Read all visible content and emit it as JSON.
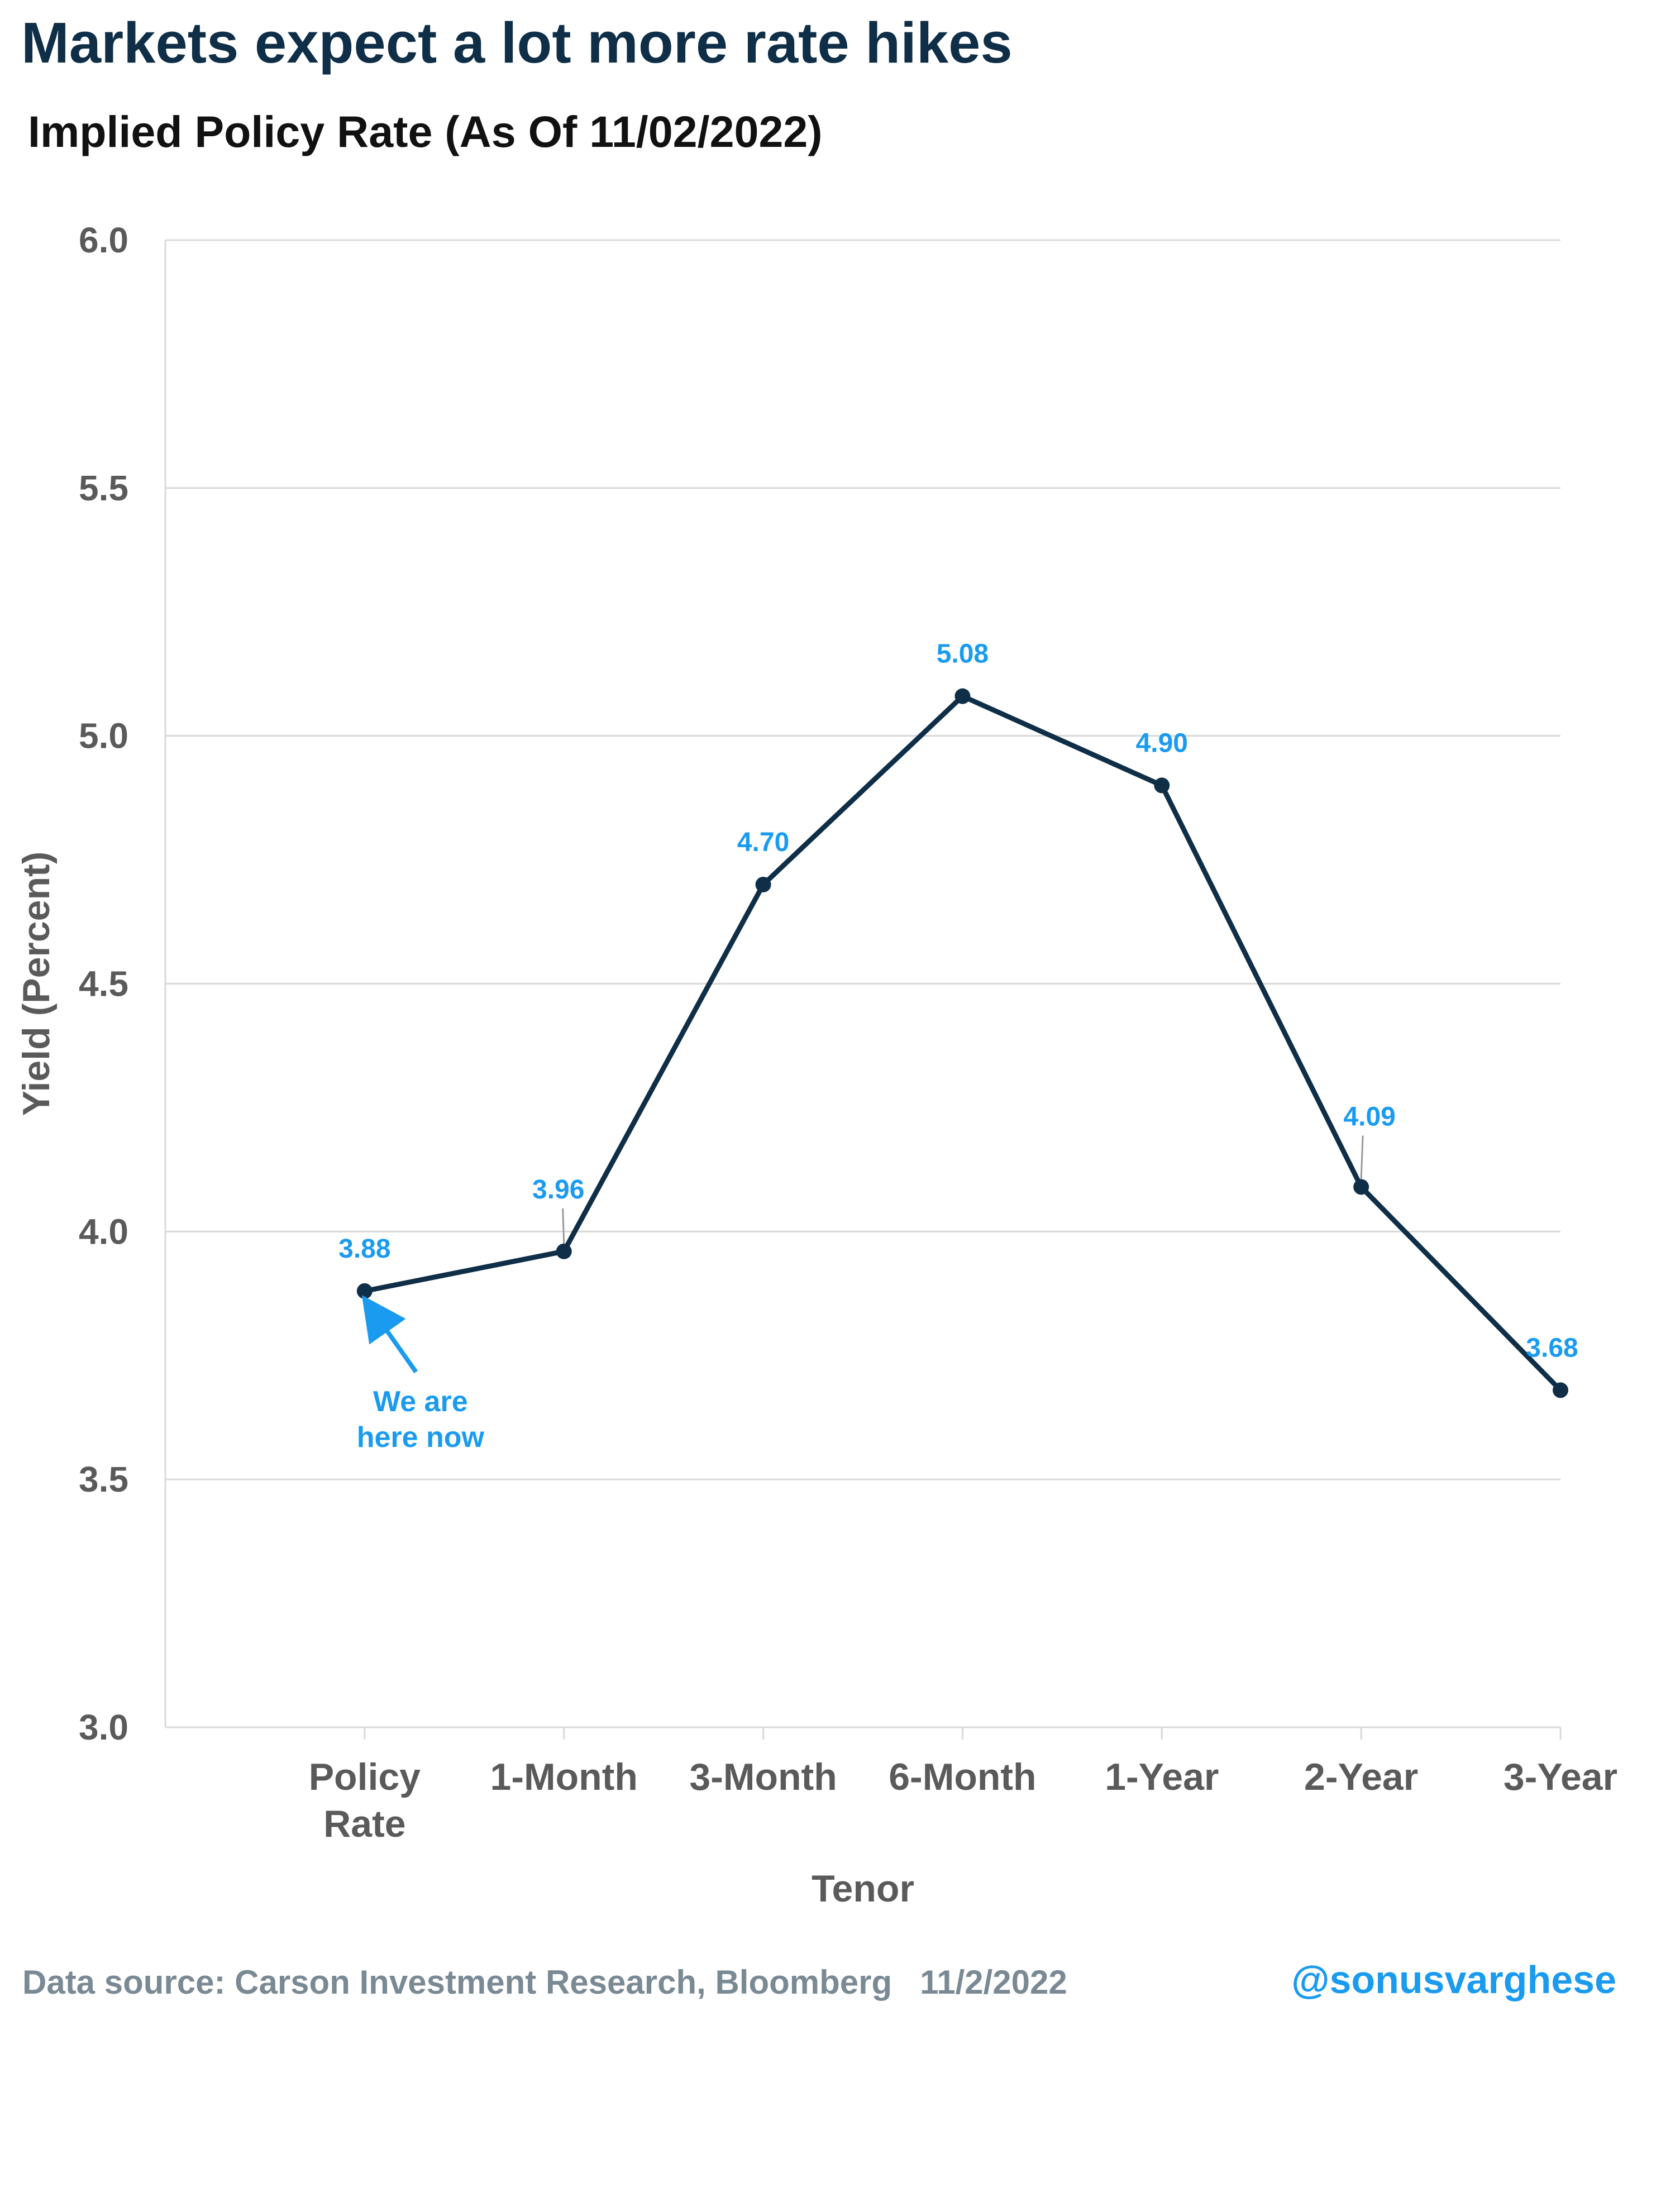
{
  "title": "Markets expect a lot more rate hikes",
  "footer": {
    "source": "Data source: Carson Investment Research, Bloomberg   11/2/2022",
    "handle": "@sonusvarghese"
  },
  "colors": {
    "title": "#0f2e47",
    "line": "#0f2e47",
    "data_label": "#1a9bf0",
    "axis_text": "#5a5a5a",
    "grid": "#d9d9d9"
  },
  "chart_data": {
    "type": "line",
    "title": "Implied Policy Rate (As Of 11/02/2022)",
    "xlabel": "Tenor",
    "ylabel": "Yield (Percent)",
    "ylim": [
      3.0,
      6.0
    ],
    "yticks": [
      "3.0",
      "3.5",
      "4.0",
      "4.5",
      "5.0",
      "5.5",
      "6.0"
    ],
    "grid": true,
    "categories": [
      "Policy Rate",
      "1-Month",
      "3-Month",
      "6-Month",
      "1-Year",
      "2-Year",
      "3-Year"
    ],
    "series": [
      {
        "values": [
          3.88,
          3.96,
          4.7,
          5.08,
          4.9,
          4.09,
          3.68
        ],
        "labels": [
          "3.88",
          "3.96",
          "4.70",
          "5.08",
          "4.90",
          "4.09",
          "3.68"
        ]
      }
    ],
    "annotations": [
      {
        "text": [
          "We are",
          "here now"
        ],
        "target_category": "Policy Rate",
        "arrow": true
      }
    ]
  }
}
